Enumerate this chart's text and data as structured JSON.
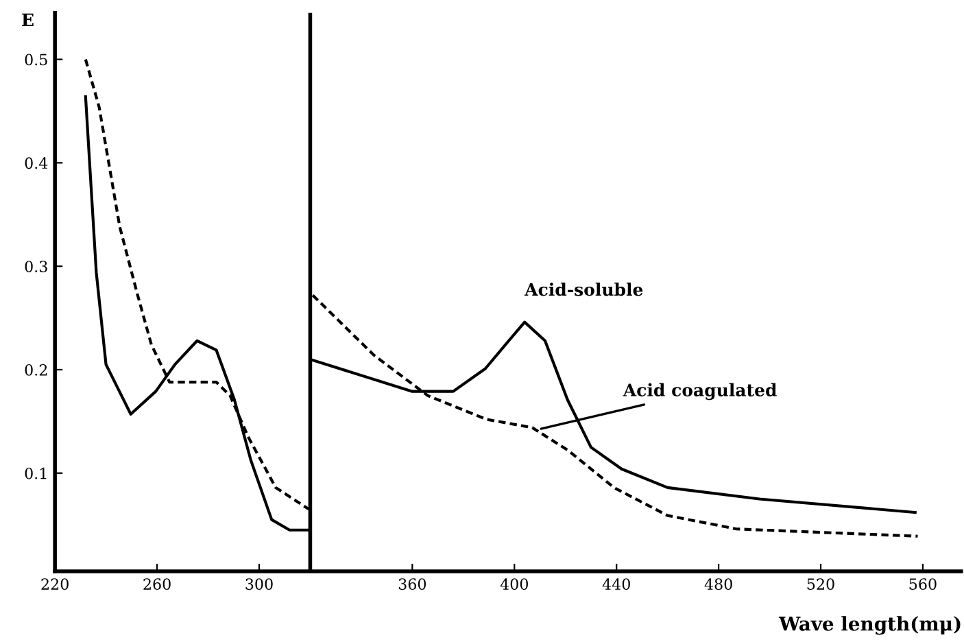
{
  "chart_data": {
    "type": "line",
    "ylabel": "E",
    "xlabel": "Wave length(mμ)",
    "xlim": [
      220,
      575
    ],
    "ylim": [
      0.005,
      0.545
    ],
    "xticks": [
      220,
      260,
      300,
      360,
      400,
      440,
      480,
      520,
      560
    ],
    "yticks": [
      {
        "value": 0.5,
        "label": "0.5"
      },
      {
        "value": 0.4,
        "label": "0.4"
      },
      {
        "value": 0.3,
        "label": "0.3"
      },
      {
        "value": 0.2,
        "label": "0.2"
      },
      {
        "value": 0.1,
        "label": "0.1"
      }
    ],
    "grid": false,
    "legend": false,
    "marker": "none",
    "ref_lines": [
      {
        "axis": "x",
        "value": 320,
        "color": "#000000",
        "line_style": "solid"
      }
    ],
    "series": [
      {
        "color": "#000000",
        "line_style": "solid",
        "x": [
          232,
          236.2,
          240,
          249.7,
          259.5,
          267,
          275.7,
          283.2,
          290.3,
          296.8,
          304.9,
          311.9,
          320
        ],
        "values": [
          0.464,
          0.294,
          0.205,
          0.157,
          0.179,
          0.205,
          0.228,
          0.219,
          0.171,
          0.112,
          0.055,
          0.045,
          0.045
        ]
      },
      {
        "color": "#000000",
        "line_style": "solid",
        "x": [
          320,
          360,
          376,
          388.6,
          397.8,
          404,
          412,
          420.8,
          430,
          442,
          460,
          496,
          557
        ],
        "values": [
          0.21,
          0.179,
          0.179,
          0.201,
          0.228,
          0.246,
          0.228,
          0.171,
          0.125,
          0.104,
          0.086,
          0.075,
          0.062
        ]
      },
      {
        "color": "#000000",
        "line_style": "dashed",
        "x": [
          232,
          237.3,
          245.4,
          252.4,
          257.8,
          264.9,
          283.2,
          288.6,
          295.7,
          306.5,
          318.9,
          320
        ],
        "values": [
          0.5,
          0.454,
          0.338,
          0.272,
          0.224,
          0.188,
          0.188,
          0.175,
          0.135,
          0.086,
          0.066,
          0.065
        ]
      },
      {
        "color": "#000000",
        "line_style": "dashed",
        "x": [
          321,
          345,
          366,
          389,
          407,
          421,
          439,
          460,
          487,
          558
        ],
        "values": [
          0.272,
          0.214,
          0.175,
          0.152,
          0.144,
          0.122,
          0.086,
          0.059,
          0.046,
          0.039
        ]
      }
    ],
    "annotations": [
      {
        "text": "Acid-soluble",
        "x": 404,
        "y": 0.246
      },
      {
        "text": "Acid coagulated",
        "x": 409,
        "y": 0.142
      }
    ]
  }
}
